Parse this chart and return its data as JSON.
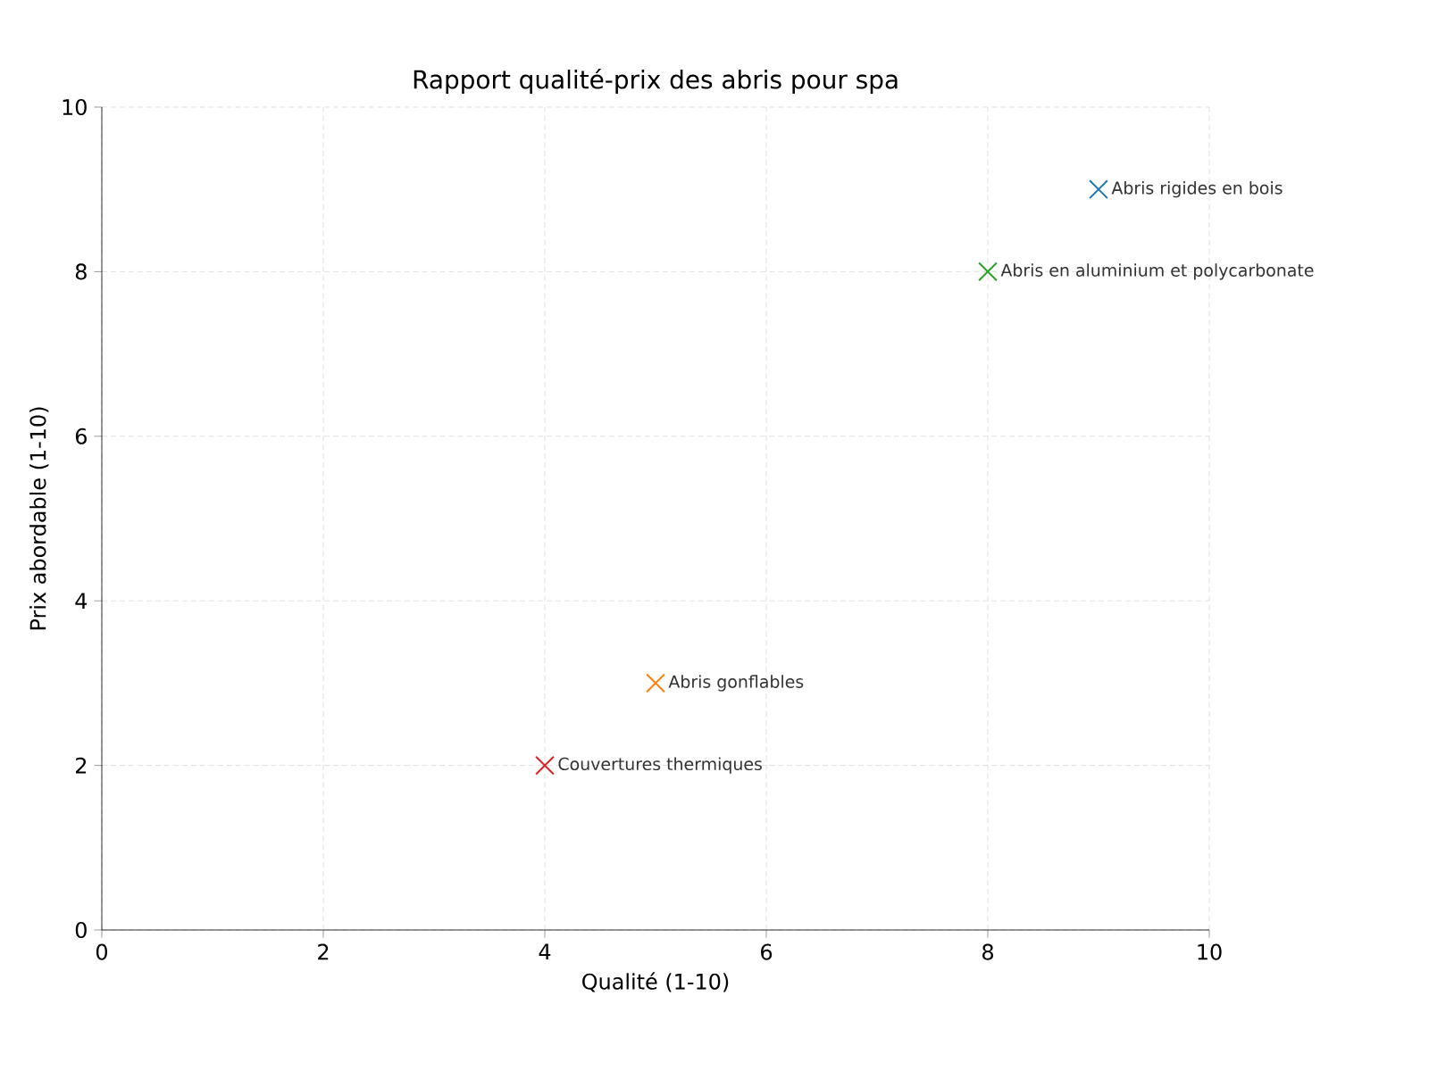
{
  "chart_data": {
    "type": "scatter",
    "title": "Rapport qualité-prix des abris pour spa",
    "xlabel": "Qualité (1-10)",
    "ylabel": "Prix abordable (1-10)",
    "xlim": [
      0,
      10
    ],
    "ylim": [
      0,
      10
    ],
    "xticks": [
      0,
      2,
      4,
      6,
      8,
      10
    ],
    "yticks": [
      0,
      2,
      4,
      6,
      8,
      10
    ],
    "grid": true,
    "marker": "cross",
    "series": [
      {
        "name": "Abris rigides en bois",
        "color": "#1f77b4",
        "x": [
          9
        ],
        "values": [
          9
        ]
      },
      {
        "name": "Abris en aluminium et polycarbonate",
        "color": "#2ca02c",
        "x": [
          8
        ],
        "values": [
          8
        ]
      },
      {
        "name": "Abris gonflables",
        "color": "#ff7f0e",
        "x": [
          5
        ],
        "values": [
          3
        ]
      },
      {
        "name": "Couvertures thermiques",
        "color": "#d62728",
        "x": [
          4
        ],
        "values": [
          2
        ]
      }
    ]
  }
}
